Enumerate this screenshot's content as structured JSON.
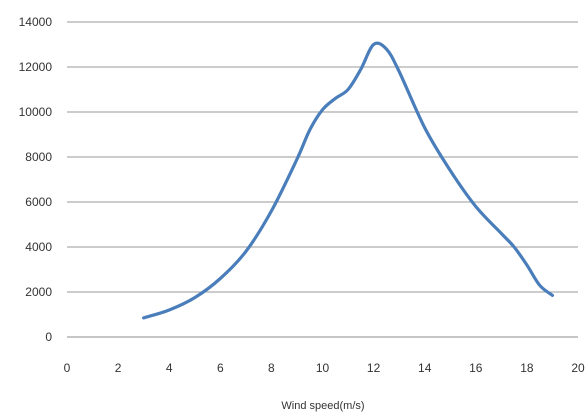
{
  "chart_data": {
    "type": "line",
    "title": "",
    "xlabel": "Wind speed(m/s)",
    "ylabel": "",
    "xlim": [
      0,
      20
    ],
    "ylim": [
      0,
      14000
    ],
    "xticks": [
      0,
      2,
      4,
      6,
      8,
      10,
      12,
      14,
      16,
      18,
      20
    ],
    "yticks": [
      0,
      2000,
      4000,
      6000,
      8000,
      10000,
      12000,
      14000
    ],
    "xtick_labels": [
      "0",
      "2",
      "4",
      "6",
      "8",
      "10",
      "12",
      "14",
      "16",
      "18",
      "20"
    ],
    "ytick_labels": [
      "0",
      "2000",
      "4000",
      "6000",
      "8000",
      "10000",
      "12000",
      "14000"
    ],
    "grid": "horizontal",
    "legend": "none",
    "series": [
      {
        "color": "#4a7ebb",
        "x": [
          3,
          4,
          5,
          6,
          7,
          8,
          9,
          9.5,
          10,
          10.5,
          11,
          11.5,
          12,
          12.5,
          13,
          14,
          15,
          16,
          17,
          17.5,
          18,
          18.5,
          19
        ],
        "y": [
          850,
          1200,
          1750,
          2600,
          3800,
          5600,
          7900,
          9200,
          10100,
          10600,
          11000,
          11900,
          13000,
          12800,
          11800,
          9300,
          7400,
          5800,
          4600,
          4000,
          3200,
          2300,
          1850
        ]
      }
    ]
  }
}
